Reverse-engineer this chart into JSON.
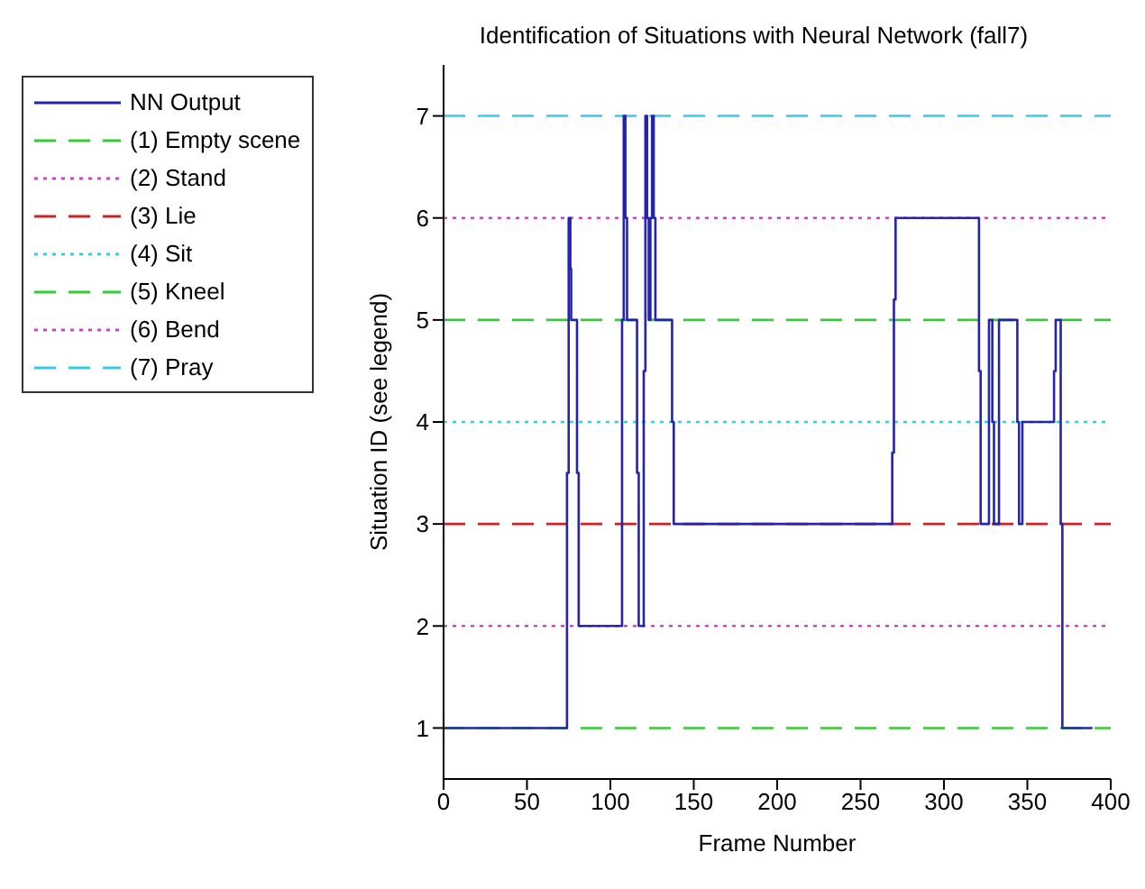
{
  "chart_data": {
    "type": "line",
    "title": "Identification of Situations with Neural Network (fall7)",
    "xlabel": "Frame Number",
    "ylabel": "Situation ID (see legend)",
    "xlim": [
      0,
      400
    ],
    "xticks": [
      0,
      50,
      100,
      150,
      200,
      250,
      300,
      350,
      400
    ],
    "ylim": [
      0.5,
      7.5
    ],
    "yticks": [
      1,
      2,
      3,
      4,
      5,
      6,
      7
    ],
    "legend": "top left",
    "series": [
      {
        "name": "NN Output",
        "color": "#2424b0",
        "x": [
          0,
          74,
          74,
          75,
          75,
          76,
          76,
          76.5,
          76.5,
          80,
          80,
          81,
          81,
          107,
          107,
          108,
          108,
          109,
          109,
          110,
          110,
          116,
          116,
          117,
          117,
          120,
          120,
          121,
          121,
          122,
          122,
          123,
          123,
          124,
          124,
          125,
          125,
          126,
          126,
          127,
          127,
          137,
          137,
          138,
          138,
          269,
          269,
          270,
          270,
          271,
          271,
          321,
          321,
          322,
          322,
          327,
          327,
          329,
          329,
          330,
          330,
          333,
          333,
          344,
          344,
          345,
          345,
          347,
          347,
          366,
          366,
          367,
          367,
          370,
          370,
          371,
          371,
          389
        ],
        "values": [
          1,
          1,
          3.5,
          3.5,
          6,
          6,
          5.5,
          5.5,
          5,
          5,
          3.5,
          3.5,
          2,
          2,
          5,
          5,
          7,
          7,
          6,
          6,
          5,
          5,
          3.5,
          3.5,
          2,
          2,
          4.5,
          4.5,
          7,
          7,
          6,
          6,
          5,
          5,
          6,
          6,
          7,
          7,
          6,
          6,
          5,
          5,
          4,
          4,
          3,
          3,
          3.7,
          3.7,
          5.2,
          5.2,
          6,
          6,
          4.5,
          4.5,
          3,
          3,
          5,
          5,
          4,
          4,
          3,
          3,
          5,
          5,
          4,
          4,
          3,
          3,
          4,
          4,
          4.5,
          4.5,
          5,
          5,
          3,
          3,
          1,
          1
        ]
      }
    ],
    "ref_lines": [
      {
        "axis": "y",
        "value": 1,
        "label": "(1) Empty scene",
        "color": "#33cc33",
        "line_style": "dashed"
      },
      {
        "axis": "y",
        "value": 2,
        "label": "(2) Stand",
        "color": "#cc44cc",
        "line_style": "dotted"
      },
      {
        "axis": "y",
        "value": 3,
        "label": "(3) Lie",
        "color": "#cc2222",
        "line_style": "dashed"
      },
      {
        "axis": "y",
        "value": 4,
        "label": "(4) Sit",
        "color": "#33ccee",
        "line_style": "dotted"
      },
      {
        "axis": "y",
        "value": 5,
        "label": "(5) Kneel",
        "color": "#33cc33",
        "line_style": "dashed"
      },
      {
        "axis": "y",
        "value": 6,
        "label": "(6) Bend",
        "color": "#cc44cc",
        "line_style": "dotted"
      },
      {
        "axis": "y",
        "value": 7,
        "label": "(7) Pray",
        "color": "#33ccee",
        "line_style": "dashed"
      }
    ]
  }
}
